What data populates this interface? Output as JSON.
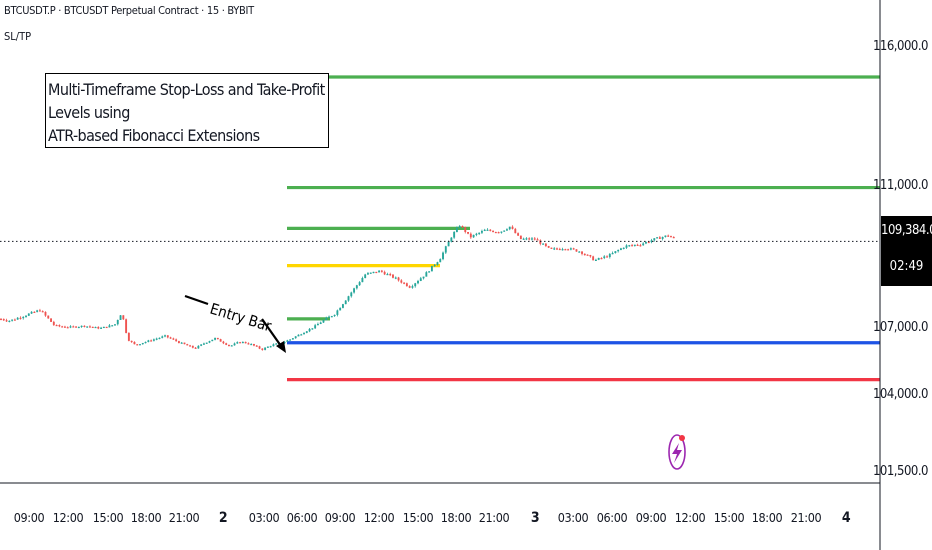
{
  "header": {
    "symbol": "BTCUSDT.P · BTCUSDT Perpetual Contract · 15 · BYBIT",
    "indicator": "SL/TP"
  },
  "annotation": {
    "line1": "Multi-Timeframe Stop-Loss and Take-Profit Levels using",
    "line2": "ATR-based Fibonacci Extensions",
    "entry_label": "Entry Bar"
  },
  "price_tag": {
    "price": "109,384.0",
    "countdown": "02:49"
  },
  "colors": {
    "up": "#26a69a",
    "down": "#ef5350",
    "tp": "#4caf50",
    "fib": "#ffd600",
    "entry": "#1e53e5",
    "sl": "#f23645"
  },
  "chart_data": {
    "type": "candlestick",
    "symbol": "BTCUSDT.P",
    "interval": "15",
    "exchange": "BYBIT",
    "y_axis": {
      "ticks": [
        101500,
        104000,
        107000,
        111000,
        116000
      ],
      "tick_labels": [
        "101,500.0",
        "104,000.0",
        "107,000.0",
        "111,000.0",
        "116,000.0"
      ]
    },
    "x_axis": {
      "tick_labels": [
        "09:00",
        "12:00",
        "15:00",
        "18:00",
        "21:00",
        "2",
        "03:00",
        "06:00",
        "09:00",
        "12:00",
        "15:00",
        "18:00",
        "21:00",
        "3",
        "03:00",
        "06:00",
        "09:00",
        "12:00",
        "15:00",
        "18:00",
        "21:00",
        "4"
      ],
      "bold_labels": [
        "2",
        "3",
        "4"
      ]
    },
    "last_price": 109384.0,
    "levels": [
      {
        "price": 114850,
        "color": "green",
        "extends_right": true
      },
      {
        "price": 110900,
        "color": "green",
        "extends_right": true
      },
      {
        "price": 109750,
        "color": "green",
        "extends_right": false
      },
      {
        "price": 108700,
        "color": "yellow",
        "extends_right": false
      },
      {
        "price": 107200,
        "color": "green",
        "extends_right": false
      },
      {
        "price": 106250,
        "color": "blue",
        "extends_right": true
      },
      {
        "price": 104600,
        "color": "red",
        "extends_right": true
      }
    ],
    "price_path": [
      [
        0,
        107200
      ],
      [
        10,
        107150
      ],
      [
        25,
        107300
      ],
      [
        40,
        107450
      ],
      [
        55,
        107000
      ],
      [
        70,
        106950
      ],
      [
        85,
        107000
      ],
      [
        100,
        106900
      ],
      [
        115,
        107050
      ],
      [
        122,
        107400
      ],
      [
        128,
        106400
      ],
      [
        135,
        106150
      ],
      [
        150,
        106350
      ],
      [
        165,
        106550
      ],
      [
        180,
        106250
      ],
      [
        195,
        106000
      ],
      [
        205,
        106250
      ],
      [
        215,
        106450
      ],
      [
        230,
        106100
      ],
      [
        240,
        106300
      ],
      [
        250,
        106200
      ],
      [
        262,
        105950
      ],
      [
        272,
        106150
      ],
      [
        282,
        106250
      ],
      [
        290,
        106400
      ],
      [
        305,
        106750
      ],
      [
        320,
        107100
      ],
      [
        335,
        107350
      ],
      [
        350,
        107900
      ],
      [
        365,
        108450
      ],
      [
        380,
        108550
      ],
      [
        395,
        108350
      ],
      [
        410,
        108100
      ],
      [
        425,
        108450
      ],
      [
        440,
        108900
      ],
      [
        452,
        109550
      ],
      [
        460,
        109850
      ],
      [
        470,
        109500
      ],
      [
        485,
        109700
      ],
      [
        500,
        109650
      ],
      [
        510,
        109800
      ],
      [
        520,
        109450
      ],
      [
        535,
        109450
      ],
      [
        550,
        109150
      ],
      [
        565,
        109200
      ],
      [
        580,
        109100
      ],
      [
        595,
        108850
      ],
      [
        610,
        109000
      ],
      [
        625,
        109250
      ],
      [
        640,
        109300
      ],
      [
        655,
        109450
      ],
      [
        668,
        109550
      ],
      [
        675,
        109450
      ]
    ]
  }
}
